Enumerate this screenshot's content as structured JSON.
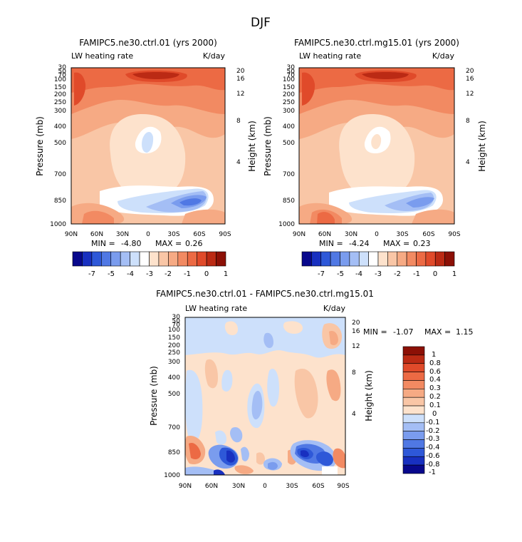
{
  "page": {
    "season_title": "DJF"
  },
  "common": {
    "left_label": "LW heating rate",
    "units": "K/day",
    "ylabel": "Pressure (mb)",
    "ylabel_right": "Height (km)",
    "x_ticks": [
      "90N",
      "60N",
      "30N",
      "0",
      "30S",
      "60S",
      "90S"
    ],
    "pressure_ticks": [
      "30",
      "50",
      "70",
      "100",
      "150",
      "200",
      "250",
      "300",
      "400",
      "500",
      "700",
      "850",
      "1000"
    ],
    "height_ticks": [
      "20",
      "16",
      "12",
      "8",
      "4"
    ]
  },
  "panels": [
    {
      "title": "FAMIPC5.ne30.ctrl.01 (yrs 2000)",
      "min_label": "MIN =",
      "min": "-4.80",
      "max_label": "MAX =",
      "max": "0.26"
    },
    {
      "title": "FAMIPC5.ne30.ctrl.mg15.01 (yrs 2000)",
      "min_label": "MIN =",
      "min": "-4.24",
      "max_label": "MAX =",
      "max": "0.23"
    },
    {
      "title": "FAMIPC5.ne30.ctrl.01 - FAMIPC5.ne30.ctrl.mg15.01",
      "min_label": "MIN =",
      "min": "-1.07",
      "max_label": "MAX =",
      "max": "1.15"
    }
  ],
  "colorbar_top": {
    "labels": [
      "-7",
      "-5",
      "-4",
      "-3",
      "-2",
      "-1",
      "0",
      "1"
    ],
    "colors": [
      "#08088c",
      "#1830c0",
      "#2e58d8",
      "#5078e4",
      "#7a9cee",
      "#a4bef5",
      "#cde0fb",
      "#ffffff",
      "#fde2cc",
      "#f9c6a6",
      "#f6aa84",
      "#f28a62",
      "#ec6a44",
      "#e04a2a",
      "#bb2a14",
      "#8c1006"
    ]
  },
  "colorbar_diff": {
    "labels": [
      "1",
      "0.8",
      "0.6",
      "0.4",
      "0.3",
      "0.2",
      "0.1",
      "0",
      "-0.1",
      "-0.2",
      "-0.3",
      "-0.4",
      "-0.6",
      "-0.8",
      "-1"
    ],
    "colors": [
      "#8c1006",
      "#bb2a14",
      "#e04a2a",
      "#ec6a44",
      "#f28a62",
      "#f6aa84",
      "#f9c6a6",
      "#fde2cc",
      "#cde0fb",
      "#a4bef5",
      "#7a9cee",
      "#5078e4",
      "#2e58d8",
      "#1830c0",
      "#08088c"
    ]
  },
  "chart_data": [
    {
      "type": "heatmap",
      "title": "FAMIPC5.ne30.ctrl.01 (yrs 2000)",
      "field": "LW heating rate",
      "units": "K/day",
      "xlabel": "",
      "ylabel": "Pressure (mb)",
      "x_categories": [
        "90N",
        "60N",
        "30N",
        "0",
        "30S",
        "60S",
        "90S"
      ],
      "y_pressure": [
        30,
        50,
        70,
        100,
        150,
        200,
        250,
        300,
        400,
        500,
        700,
        850,
        1000
      ],
      "min": -4.8,
      "max": 0.26,
      "levels": [
        -7,
        -6,
        -5,
        -4.5,
        -4,
        -3.5,
        -3,
        -2.5,
        -2,
        -1.5,
        -1,
        -0.5,
        0,
        0.5,
        1
      ]
    },
    {
      "type": "heatmap",
      "title": "FAMIPC5.ne30.ctrl.mg15.01 (yrs 2000)",
      "field": "LW heating rate",
      "units": "K/day",
      "xlabel": "",
      "ylabel": "Pressure (mb)",
      "x_categories": [
        "90N",
        "60N",
        "30N",
        "0",
        "30S",
        "60S",
        "90S"
      ],
      "y_pressure": [
        30,
        50,
        70,
        100,
        150,
        200,
        250,
        300,
        400,
        500,
        700,
        850,
        1000
      ],
      "min": -4.24,
      "max": 0.23,
      "levels": [
        -7,
        -6,
        -5,
        -4.5,
        -4,
        -3.5,
        -3,
        -2.5,
        -2,
        -1.5,
        -1,
        -0.5,
        0,
        0.5,
        1
      ]
    },
    {
      "type": "heatmap",
      "title": "FAMIPC5.ne30.ctrl.01 - FAMIPC5.ne30.ctrl.mg15.01",
      "field": "LW heating rate",
      "units": "K/day",
      "xlabel": "",
      "ylabel": "Pressure (mb)",
      "x_categories": [
        "90N",
        "60N",
        "30N",
        "0",
        "30S",
        "60S",
        "90S"
      ],
      "y_pressure": [
        30,
        50,
        70,
        100,
        150,
        200,
        250,
        300,
        400,
        500,
        700,
        850,
        1000
      ],
      "min": -1.07,
      "max": 1.15,
      "levels": [
        -1,
        -0.8,
        -0.6,
        -0.4,
        -0.3,
        -0.2,
        -0.1,
        0,
        0.1,
        0.2,
        0.3,
        0.4,
        0.6,
        0.8,
        1
      ]
    }
  ]
}
